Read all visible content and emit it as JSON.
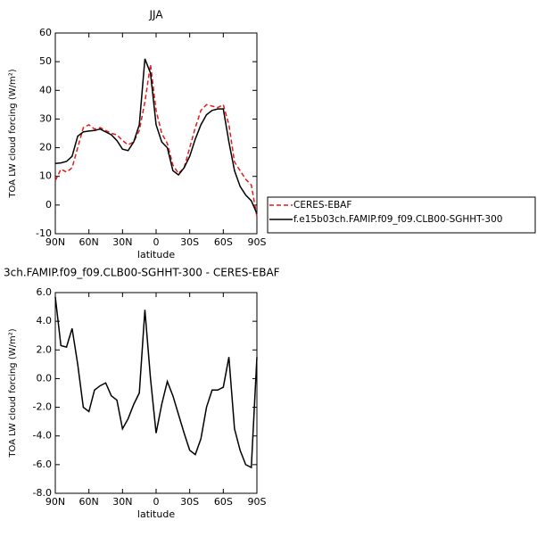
{
  "chart_data": [
    {
      "type": "line",
      "title": "JJA",
      "xlabel": "latitude",
      "ylabel": "TOA LW cloud forcing (W/m²)",
      "x": [
        90,
        85,
        80,
        75,
        70,
        65,
        60,
        55,
        50,
        45,
        40,
        35,
        30,
        25,
        20,
        15,
        10,
        5,
        0,
        -5,
        -10,
        -15,
        -20,
        -25,
        -30,
        -35,
        -40,
        -45,
        -50,
        -55,
        -60,
        -65,
        -70,
        -75,
        -80,
        -85,
        -90
      ],
      "series": [
        {
          "name": "CERES-EBAF",
          "color": "#e41a1c",
          "linestyle": "dashed",
          "values": [
            8.5,
            12.5,
            11.5,
            13,
            20,
            27,
            28,
            26.5,
            27,
            26,
            25,
            24.5,
            22.5,
            21,
            22,
            26,
            36,
            49,
            33,
            25,
            21.5,
            14,
            11,
            13,
            20,
            27,
            33,
            35,
            34.5,
            34,
            35,
            28,
            15,
            12,
            9,
            7,
            -4
          ]
        },
        {
          "name": "f.e15b03ch.FAMIP.f09_f09.CLB00-SGHHT-300",
          "color": "#000000",
          "linestyle": "solid",
          "values": [
            14.5,
            14.7,
            15.2,
            17,
            24,
            25.5,
            25.8,
            26,
            26.5,
            25.5,
            24.5,
            22.5,
            19.5,
            19,
            22,
            28,
            51,
            46,
            28,
            22,
            20,
            12,
            10.5,
            13,
            17,
            23,
            28,
            31.5,
            33,
            33.5,
            33.5,
            22,
            12,
            6.5,
            3.5,
            1.5,
            -3
          ]
        }
      ],
      "xlim": [
        90,
        -90
      ],
      "xticks": [
        {
          "value": 90,
          "label": "90N"
        },
        {
          "value": 60,
          "label": "60N"
        },
        {
          "value": 30,
          "label": "30N"
        },
        0,
        {
          "value": -30,
          "label": "30S"
        },
        {
          "value": -60,
          "label": "60S"
        },
        {
          "value": -90,
          "label": "90S"
        }
      ],
      "ylim": [
        -10,
        60
      ],
      "yticks": [
        -10,
        0,
        10,
        20,
        30,
        40,
        50,
        60
      ],
      "legend": "right"
    },
    {
      "type": "line",
      "title": "3ch.FAMIP.f09_f09.CLB00-SGHHT-300 - CERES-EBAF",
      "xlabel": "latitude",
      "ylabel": "TOA LW cloud forcing (W/m²)",
      "x": [
        90,
        85,
        80,
        75,
        70,
        65,
        60,
        55,
        50,
        45,
        40,
        35,
        30,
        25,
        20,
        15,
        10,
        5,
        0,
        -5,
        -10,
        -15,
        -20,
        -25,
        -30,
        -35,
        -40,
        -45,
        -50,
        -55,
        -60,
        -65,
        -70,
        -75,
        -80,
        -85,
        -90
      ],
      "series": [
        {
          "color": "#000000",
          "linestyle": "solid",
          "values": [
            5.7,
            2.3,
            2.2,
            3.5,
            1.0,
            -2.0,
            -2.3,
            -0.8,
            -0.5,
            -0.3,
            -1.2,
            -1.5,
            -3.5,
            -2.8,
            -1.8,
            -1.0,
            4.8,
            0.0,
            -3.8,
            -1.8,
            -0.2,
            -1.2,
            -2.5,
            -3.8,
            -5.0,
            -5.3,
            -4.2,
            -2.0,
            -0.8,
            -0.8,
            -0.6,
            1.5,
            -3.5,
            -5.0,
            -6.0,
            -6.2,
            1.5
          ]
        }
      ],
      "xlim": [
        90,
        -90
      ],
      "xticks": [
        {
          "value": 90,
          "label": "90N"
        },
        {
          "value": 60,
          "label": "60N"
        },
        {
          "value": 30,
          "label": "30N"
        },
        0,
        {
          "value": -30,
          "label": "30S"
        },
        {
          "value": -60,
          "label": "60S"
        },
        {
          "value": -90,
          "label": "90S"
        }
      ],
      "ylim": [
        -8,
        6
      ],
      "yticks": [
        {
          "value": -8,
          "label": "-8.0"
        },
        {
          "value": -6,
          "label": "-6.0"
        },
        {
          "value": -4,
          "label": "-4.0"
        },
        {
          "value": -2,
          "label": "-2.0"
        },
        {
          "value": 0,
          "label": "0.0"
        },
        {
          "value": 2,
          "label": "2.0"
        },
        {
          "value": 4,
          "label": "4.0"
        },
        {
          "value": 6,
          "label": "6.0"
        }
      ]
    }
  ]
}
